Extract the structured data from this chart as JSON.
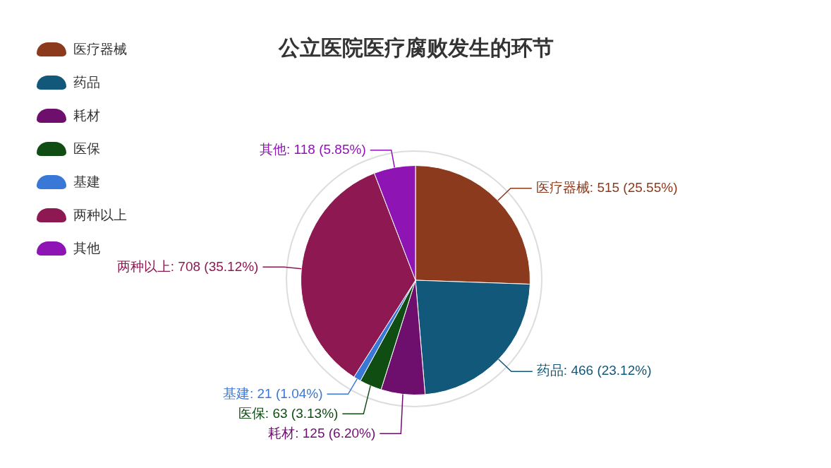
{
  "chart_data": {
    "type": "pie",
    "title": "公立医院医疗腐败发生的环节",
    "categories": [
      "医疗器械",
      "药品",
      "耗材",
      "医保",
      "基建",
      "两种以上",
      "其他"
    ],
    "values": [
      515,
      466,
      125,
      63,
      21,
      708,
      118
    ],
    "value_labels": [
      ": 515 (25.55%)",
      ": 466 (23.12%)",
      ": 125 (6.20%)",
      ": 63 (3.13%)",
      ": 21 (1.04%)",
      ": 708 (35.12%)",
      ": 118 (5.85%)"
    ],
    "colors": [
      "#8b3a1e",
      "#11587a",
      "#6e0f6e",
      "#0f4d13",
      "#3a78d8",
      "#8e1852",
      "#8e14b4"
    ],
    "legend": "top left"
  }
}
